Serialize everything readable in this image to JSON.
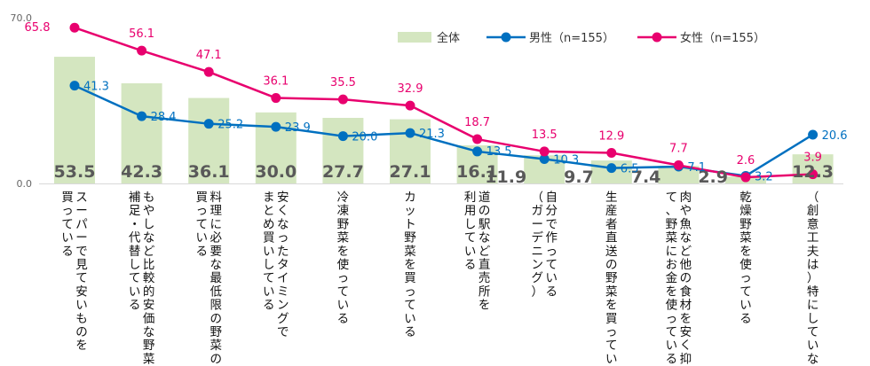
{
  "chart_data": {
    "type": "bar",
    "ylim": [
      0,
      70
    ],
    "ytick_labels": [
      "0.0",
      "70.0"
    ],
    "grid": false,
    "legend_position": "top-right",
    "categories": [
      [
        "スーパーで見て安いものを",
        "買っている"
      ],
      [
        "もやしなど比較的安価な野菜で",
        "補足・代替している"
      ],
      [
        "料理に必要な最低限の野菜のみ",
        "買っている"
      ],
      [
        "安くなったタイミングで",
        "まとめ買いしている"
      ],
      [
        "冷凍野菜を使っている"
      ],
      [
        "カット野菜を買っている"
      ],
      [
        "道の駅など直売所を",
        "利用している"
      ],
      [
        "自分で作っている",
        "（ガーデニング）"
      ],
      [
        "生産者直送の野菜を買っている"
      ],
      [
        "肉や魚など他の食材を安く抑え",
        "て、野菜にお金を使っている"
      ],
      [
        "乾燥野菜を使っている"
      ],
      [
        "（創意工夫は）特にしていない"
      ]
    ],
    "series": [
      {
        "name": "全体",
        "kind": "bar",
        "color": "#d4e6c0",
        "values": [
          53.5,
          42.3,
          36.1,
          30.0,
          27.7,
          27.1,
          16.1,
          11.9,
          9.7,
          7.4,
          2.9,
          12.3
        ],
        "labels": [
          "53.5",
          "42.3",
          "36.1",
          "30.0",
          "27.7",
          "27.1",
          "16.1",
          "11.9",
          "9.7",
          "7.4",
          "2.9",
          "12.3"
        ]
      },
      {
        "name": "男性（n=155）",
        "kind": "line",
        "color": "#0070c0",
        "values": [
          41.3,
          28.4,
          25.2,
          23.9,
          20.0,
          21.3,
          13.5,
          10.3,
          6.5,
          7.1,
          3.2,
          20.6
        ],
        "labels": [
          "41.3",
          "28.4",
          "25.2",
          "23.9",
          "20.0",
          "21.3",
          "13.5",
          "10.3",
          "6.5",
          "7.1",
          "3.2",
          "20.6"
        ]
      },
      {
        "name": "女性（n=155）",
        "kind": "line",
        "color": "#e8006e",
        "values": [
          65.8,
          56.1,
          47.1,
          36.1,
          35.5,
          32.9,
          18.7,
          13.5,
          12.9,
          7.7,
          2.6,
          3.9
        ],
        "labels": [
          "65.8",
          "56.1",
          "47.1",
          "36.1",
          "35.5",
          "32.9",
          "18.7",
          "13.5",
          "12.9",
          "7.7",
          "2.6",
          "3.9"
        ]
      }
    ]
  }
}
